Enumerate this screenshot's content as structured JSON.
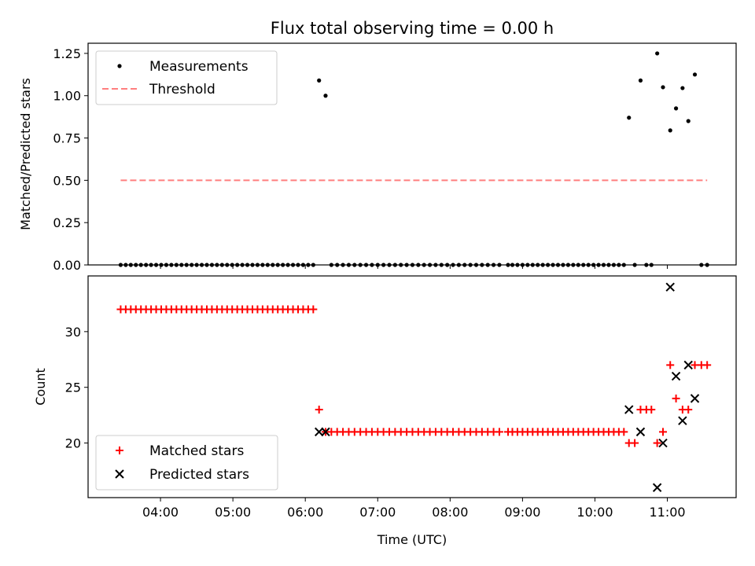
{
  "chart_data": [
    {
      "type": "scatter",
      "title": "Flux total observing time = 0.00 h",
      "xlabel": "",
      "ylabel": "Matched/Predicted stars",
      "xlim": [
        3.0,
        11.95
      ],
      "ylim": [
        0.0,
        1.31
      ],
      "yticks": [
        0.0,
        0.25,
        0.5,
        0.75,
        1.0,
        1.25
      ],
      "ytick_labels": [
        "0.00",
        "0.25",
        "0.50",
        "0.75",
        "1.00",
        "1.25"
      ],
      "legend_position": "top-left",
      "series": [
        {
          "name": "Measurements",
          "style": "dot",
          "color": "#000000",
          "x": [
            3.45,
            3.52,
            3.59,
            3.66,
            3.73,
            3.8,
            3.87,
            3.94,
            4.01,
            4.08,
            4.15,
            4.22,
            4.29,
            4.36,
            4.43,
            4.5,
            4.57,
            4.64,
            4.71,
            4.78,
            4.85,
            4.92,
            4.99,
            5.06,
            5.13,
            5.2,
            5.27,
            5.34,
            5.41,
            5.48,
            5.55,
            5.62,
            5.69,
            5.76,
            5.83,
            5.9,
            5.97,
            6.04,
            6.11,
            6.19,
            6.28,
            6.36,
            6.44,
            6.52,
            6.6,
            6.68,
            6.76,
            6.84,
            6.92,
            7.0,
            7.08,
            7.16,
            7.24,
            7.32,
            7.4,
            7.48,
            7.56,
            7.64,
            7.72,
            7.8,
            7.88,
            7.96,
            8.04,
            8.12,
            8.2,
            8.28,
            8.36,
            8.44,
            8.52,
            8.6,
            8.68,
            8.8,
            8.86,
            8.93,
            9.0,
            9.07,
            9.14,
            9.21,
            9.28,
            9.35,
            9.42,
            9.49,
            9.56,
            9.63,
            9.7,
            9.77,
            9.84,
            9.91,
            9.98,
            10.05,
            10.12,
            10.19,
            10.26,
            10.33,
            10.4,
            10.47,
            10.55,
            10.63,
            10.71,
            10.78,
            10.86,
            10.94,
            11.04,
            11.12,
            11.21,
            11.29,
            11.38,
            11.47,
            11.55
          ],
          "y": [
            0,
            0,
            0,
            0,
            0,
            0,
            0,
            0,
            0,
            0,
            0,
            0,
            0,
            0,
            0,
            0,
            0,
            0,
            0,
            0,
            0,
            0,
            0,
            0,
            0,
            0,
            0,
            0,
            0,
            0,
            0,
            0,
            0,
            0,
            0,
            0,
            0,
            0,
            0,
            1.09,
            1.0,
            0,
            0,
            0,
            0,
            0,
            0,
            0,
            0,
            0,
            0,
            0,
            0,
            0,
            0,
            0,
            0,
            0,
            0,
            0,
            0,
            0,
            0,
            0,
            0,
            0,
            0,
            0,
            0,
            0,
            0,
            0,
            0,
            0,
            0,
            0,
            0,
            0,
            0,
            0,
            0,
            0,
            0,
            0,
            0,
            0,
            0,
            0,
            0,
            0,
            0,
            0,
            0,
            0,
            0,
            0.87,
            0,
            1.09,
            0,
            0,
            1.25,
            1.05,
            0.795,
            0.925,
            1.045,
            0.85,
            1.125,
            0,
            0
          ]
        },
        {
          "name": "Threshold",
          "style": "dashed",
          "color": "#ff7f7f",
          "x": [
            3.45,
            11.55
          ],
          "y": [
            0.5,
            0.5
          ]
        }
      ]
    },
    {
      "type": "scatter",
      "title": "",
      "xlabel": "Time (UTC)",
      "ylabel": "Count",
      "xlim": [
        3.0,
        11.95
      ],
      "ylim": [
        15.1,
        35.0
      ],
      "xticks": [
        4,
        5,
        6,
        7,
        8,
        9,
        10,
        11
      ],
      "xtick_labels": [
        "04:00",
        "05:00",
        "06:00",
        "07:00",
        "08:00",
        "09:00",
        "10:00",
        "11:00"
      ],
      "yticks": [
        20,
        25,
        30
      ],
      "ytick_labels": [
        "20",
        "25",
        "30"
      ],
      "legend_position": "bottom-left",
      "series": [
        {
          "name": "Matched stars",
          "style": "plus",
          "color": "#ff0000",
          "x": [
            3.45,
            3.52,
            3.59,
            3.66,
            3.73,
            3.8,
            3.87,
            3.94,
            4.01,
            4.08,
            4.15,
            4.22,
            4.29,
            4.36,
            4.43,
            4.5,
            4.57,
            4.64,
            4.71,
            4.78,
            4.85,
            4.92,
            4.99,
            5.06,
            5.13,
            5.2,
            5.27,
            5.34,
            5.41,
            5.48,
            5.55,
            5.62,
            5.69,
            5.76,
            5.83,
            5.9,
            5.97,
            6.04,
            6.11,
            6.19,
            6.28,
            6.36,
            6.44,
            6.52,
            6.6,
            6.68,
            6.76,
            6.84,
            6.92,
            7.0,
            7.08,
            7.16,
            7.24,
            7.32,
            7.4,
            7.48,
            7.56,
            7.64,
            7.72,
            7.8,
            7.88,
            7.96,
            8.04,
            8.12,
            8.2,
            8.28,
            8.36,
            8.44,
            8.52,
            8.6,
            8.68,
            8.8,
            8.86,
            8.93,
            9.0,
            9.07,
            9.14,
            9.21,
            9.28,
            9.35,
            9.42,
            9.49,
            9.56,
            9.63,
            9.7,
            9.77,
            9.84,
            9.91,
            9.98,
            10.05,
            10.12,
            10.19,
            10.26,
            10.33,
            10.4,
            10.47,
            10.55,
            10.63,
            10.71,
            10.78,
            10.86,
            10.94,
            11.04,
            11.12,
            11.21,
            11.29,
            11.38,
            11.47,
            11.55
          ],
          "y": [
            32,
            32,
            32,
            32,
            32,
            32,
            32,
            32,
            32,
            32,
            32,
            32,
            32,
            32,
            32,
            32,
            32,
            32,
            32,
            32,
            32,
            32,
            32,
            32,
            32,
            32,
            32,
            32,
            32,
            32,
            32,
            32,
            32,
            32,
            32,
            32,
            32,
            32,
            32,
            23,
            21,
            21,
            21,
            21,
            21,
            21,
            21,
            21,
            21,
            21,
            21,
            21,
            21,
            21,
            21,
            21,
            21,
            21,
            21,
            21,
            21,
            21,
            21,
            21,
            21,
            21,
            21,
            21,
            21,
            21,
            21,
            21,
            21,
            21,
            21,
            21,
            21,
            21,
            21,
            21,
            21,
            21,
            21,
            21,
            21,
            21,
            21,
            21,
            21,
            21,
            21,
            21,
            21,
            21,
            21,
            20,
            20,
            23,
            23,
            23,
            20,
            21,
            27,
            24,
            23,
            23,
            27,
            27,
            27
          ]
        },
        {
          "name": "Predicted stars",
          "style": "x",
          "color": "#000000",
          "x": [
            6.19,
            6.28,
            10.47,
            10.63,
            10.86,
            10.94,
            11.04,
            11.12,
            11.21,
            11.29,
            11.38
          ],
          "y": [
            21,
            21,
            23,
            21,
            16,
            20,
            34,
            26,
            22,
            27,
            24
          ]
        }
      ]
    }
  ]
}
